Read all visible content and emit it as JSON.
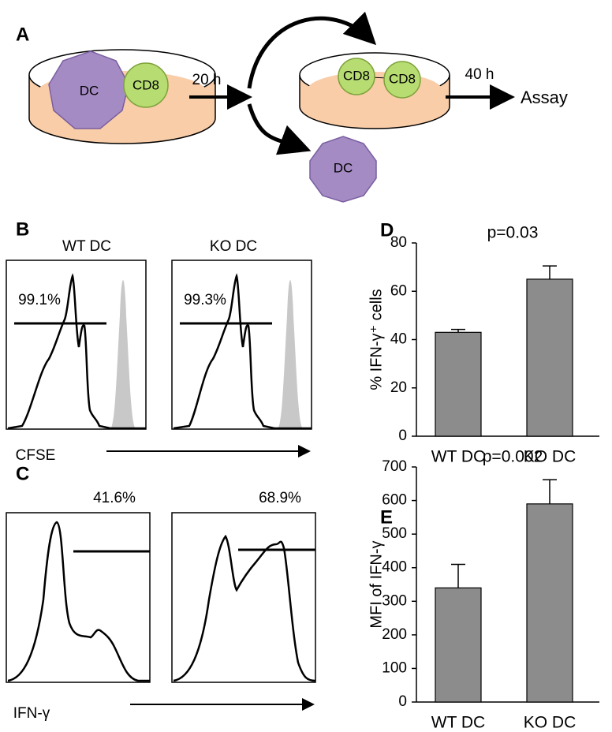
{
  "panel_a": {
    "label": "A",
    "cells": {
      "dc": "DC",
      "cd8": "CD8"
    },
    "step1": "20 h",
    "step2": "40 h",
    "result": "Assay"
  },
  "panel_b": {
    "label": "B",
    "columns": [
      "WT DC",
      "KO DC"
    ],
    "gates": [
      "99.1%",
      "99.3%"
    ],
    "axis_label": "CFSE"
  },
  "panel_c": {
    "label": "C",
    "gates": [
      "41.6%",
      "68.9%"
    ],
    "axis_label": "IFN-γ"
  },
  "chart_data": [
    {
      "type": "bar",
      "panel_label": "D",
      "annotation": "p=0.03",
      "ylabel": "% IFN-γ⁺ cells",
      "categories": [
        "WT DC",
        "KO DC"
      ],
      "values": [
        43,
        65
      ],
      "errors": [
        1.2,
        5.5
      ],
      "color": "#8c8c8c",
      "ylim": [
        0,
        80
      ],
      "yticks": [
        0,
        20,
        40,
        60,
        80
      ]
    },
    {
      "type": "bar",
      "panel_label": "E",
      "annotation": "p=0.002",
      "ylabel": "MFI of  IFN-γ",
      "categories": [
        "WT DC",
        "KO DC"
      ],
      "values": [
        340,
        590
      ],
      "errors": [
        70,
        72
      ],
      "color": "#8c8c8c",
      "ylim": [
        0,
        700
      ],
      "yticks": [
        0,
        100,
        200,
        300,
        400,
        500,
        600,
        700
      ]
    }
  ]
}
